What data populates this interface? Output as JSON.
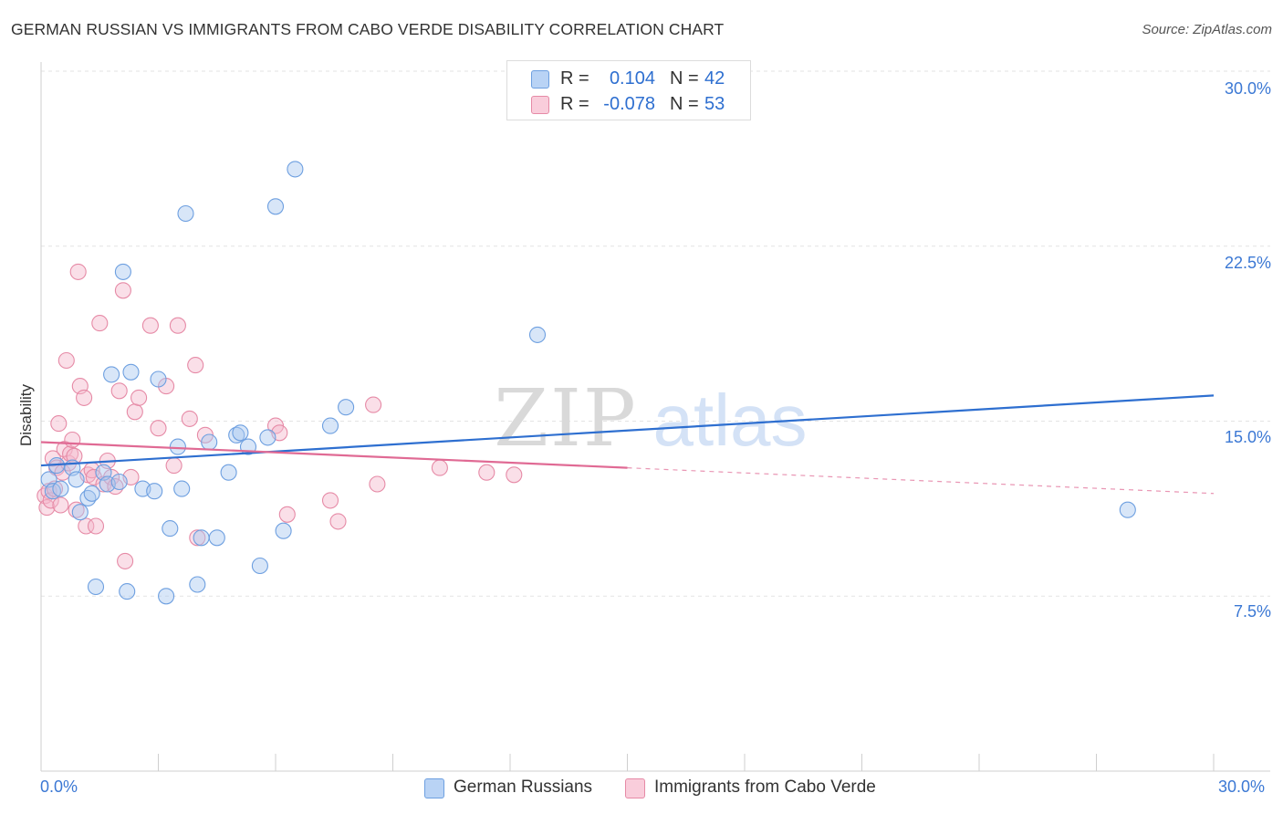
{
  "chart_data": {
    "type": "scatter",
    "title": "GERMAN RUSSIAN VS IMMIGRANTS FROM CABO VERDE DISABILITY CORRELATION CHART",
    "source": "Source: ZipAtlas.com",
    "ylabel": "Disability",
    "xlabel": "",
    "xlim": [
      0,
      30
    ],
    "ylim": [
      0,
      30
    ],
    "x_tick_labels": [
      "0.0%",
      "30.0%"
    ],
    "y_ticks": [
      7.5,
      15.0,
      22.5,
      30.0
    ],
    "y_tick_labels": [
      "7.5%",
      "15.0%",
      "22.5%",
      "30.0%"
    ],
    "watermark": {
      "bold": "ZIP",
      "light": "atlas"
    },
    "series": [
      {
        "name": "German Russians",
        "color": "#a9c7f0",
        "stroke": "#6d9fe0",
        "line_color": "#2e6fd0",
        "R": "0.104",
        "N": "42",
        "trend": {
          "x0": 0,
          "y0": 13.1,
          "x1": 30,
          "y1": 16.1,
          "solid_until": 30
        },
        "points": [
          [
            0.2,
            12.5
          ],
          [
            0.3,
            12.0
          ],
          [
            0.4,
            13.1
          ],
          [
            0.5,
            12.1
          ],
          [
            0.8,
            13.0
          ],
          [
            0.9,
            12.5
          ],
          [
            1.0,
            11.1
          ],
          [
            1.2,
            11.7
          ],
          [
            1.3,
            11.9
          ],
          [
            1.4,
            7.9
          ],
          [
            1.6,
            12.8
          ],
          [
            1.7,
            12.3
          ],
          [
            1.8,
            17.0
          ],
          [
            2.0,
            12.4
          ],
          [
            2.1,
            21.4
          ],
          [
            2.2,
            7.7
          ],
          [
            2.3,
            17.1
          ],
          [
            2.6,
            12.1
          ],
          [
            2.9,
            12.0
          ],
          [
            3.0,
            16.8
          ],
          [
            3.2,
            7.5
          ],
          [
            3.3,
            10.4
          ],
          [
            3.5,
            13.9
          ],
          [
            3.6,
            12.1
          ],
          [
            3.7,
            23.9
          ],
          [
            4.0,
            8.0
          ],
          [
            4.1,
            10.0
          ],
          [
            4.3,
            14.1
          ],
          [
            4.5,
            10.0
          ],
          [
            4.8,
            12.8
          ],
          [
            5.0,
            14.4
          ],
          [
            5.1,
            14.5
          ],
          [
            5.3,
            13.9
          ],
          [
            5.6,
            8.8
          ],
          [
            5.8,
            14.3
          ],
          [
            6.0,
            24.2
          ],
          [
            6.2,
            10.3
          ],
          [
            6.5,
            25.8
          ],
          [
            7.4,
            14.8
          ],
          [
            7.8,
            15.6
          ],
          [
            12.7,
            18.7
          ],
          [
            27.8,
            11.2
          ]
        ]
      },
      {
        "name": "Immigrants from Cabo Verde",
        "color": "#f5b9cb",
        "stroke": "#e68aa6",
        "line_color": "#e06a94",
        "R": "-0.078",
        "N": "53",
        "trend": {
          "x0": 0,
          "y0": 14.1,
          "x1": 30,
          "y1": 11.9,
          "solid_until": 15
        },
        "points": [
          [
            0.1,
            11.8
          ],
          [
            0.15,
            11.3
          ],
          [
            0.2,
            12.0
          ],
          [
            0.25,
            11.6
          ],
          [
            0.3,
            13.4
          ],
          [
            0.35,
            12.1
          ],
          [
            0.4,
            13.0
          ],
          [
            0.45,
            14.9
          ],
          [
            0.5,
            11.4
          ],
          [
            0.55,
            12.8
          ],
          [
            0.6,
            13.8
          ],
          [
            0.65,
            17.6
          ],
          [
            0.7,
            13.2
          ],
          [
            0.75,
            13.6
          ],
          [
            0.8,
            14.2
          ],
          [
            0.85,
            13.5
          ],
          [
            0.9,
            11.2
          ],
          [
            0.95,
            21.4
          ],
          [
            1.0,
            16.5
          ],
          [
            1.1,
            16.0
          ],
          [
            1.15,
            10.5
          ],
          [
            1.2,
            12.7
          ],
          [
            1.3,
            12.9
          ],
          [
            1.35,
            12.6
          ],
          [
            1.4,
            10.5
          ],
          [
            1.5,
            19.2
          ],
          [
            1.6,
            12.3
          ],
          [
            1.7,
            13.3
          ],
          [
            1.8,
            12.6
          ],
          [
            1.9,
            12.2
          ],
          [
            2.0,
            16.3
          ],
          [
            2.1,
            20.6
          ],
          [
            2.15,
            9.0
          ],
          [
            2.3,
            12.6
          ],
          [
            2.4,
            15.4
          ],
          [
            2.5,
            16.0
          ],
          [
            2.8,
            19.1
          ],
          [
            3.0,
            14.7
          ],
          [
            3.2,
            16.5
          ],
          [
            3.4,
            13.1
          ],
          [
            3.5,
            19.1
          ],
          [
            3.8,
            15.1
          ],
          [
            3.95,
            17.4
          ],
          [
            4.0,
            10.0
          ],
          [
            4.2,
            14.4
          ],
          [
            6.0,
            14.8
          ],
          [
            6.1,
            14.5
          ],
          [
            6.3,
            11.0
          ],
          [
            7.4,
            11.6
          ],
          [
            7.6,
            10.7
          ],
          [
            8.5,
            15.7
          ],
          [
            8.6,
            12.3
          ],
          [
            10.2,
            13.0
          ],
          [
            11.4,
            12.8
          ],
          [
            12.1,
            12.7
          ]
        ]
      }
    ]
  }
}
